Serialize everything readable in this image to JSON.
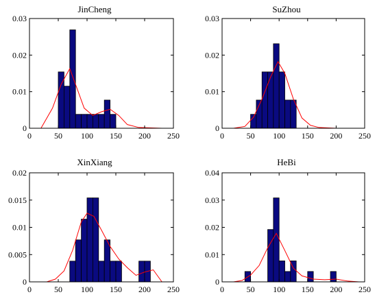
{
  "figure": {
    "bar_color": "#0a0a80",
    "curve_color": "#ff0000",
    "axes_color": "#000000"
  },
  "chart_data": [
    {
      "type": "bar",
      "title": "JinCheng",
      "xlim": [
        0,
        250
      ],
      "ylim": [
        0,
        0.03
      ],
      "xticks": [
        "0",
        "50",
        "100",
        "150",
        "200",
        "250"
      ],
      "yticks": [
        "0",
        "0.01",
        "0.02",
        "0.03"
      ],
      "bin_width": 10,
      "bars": [
        {
          "x": 55,
          "value": 0.0154
        },
        {
          "x": 65,
          "value": 0.0115
        },
        {
          "x": 75,
          "value": 0.0269
        },
        {
          "x": 85,
          "value": 0.0038
        },
        {
          "x": 95,
          "value": 0.0038
        },
        {
          "x": 105,
          "value": 0.0038
        },
        {
          "x": 115,
          "value": 0.0038
        },
        {
          "x": 125,
          "value": 0.0038
        },
        {
          "x": 135,
          "value": 0.0077
        },
        {
          "x": 145,
          "value": 0.0038
        }
      ],
      "curve": {
        "x": [
          0,
          20,
          40,
          55,
          70,
          80,
          95,
          110,
          125,
          140,
          155,
          170,
          190,
          230
        ],
        "y": [
          0,
          0,
          0.0055,
          0.012,
          0.0163,
          0.012,
          0.0055,
          0.0035,
          0.0045,
          0.0052,
          0.0035,
          0.001,
          0.0002,
          0
        ]
      }
    },
    {
      "type": "bar",
      "title": "SuZhou",
      "xlim": [
        0,
        250
      ],
      "ylim": [
        0,
        0.03
      ],
      "xticks": [
        "0",
        "50",
        "100",
        "150",
        "200",
        "250"
      ],
      "yticks": [
        "0",
        "0.01",
        "0.02",
        "0.03"
      ],
      "bin_width": 10,
      "bars": [
        {
          "x": 55,
          "value": 0.0038
        },
        {
          "x": 65,
          "value": 0.0077
        },
        {
          "x": 75,
          "value": 0.0154
        },
        {
          "x": 85,
          "value": 0.0154
        },
        {
          "x": 95,
          "value": 0.0231
        },
        {
          "x": 105,
          "value": 0.0154
        },
        {
          "x": 115,
          "value": 0.0077
        },
        {
          "x": 125,
          "value": 0.0077
        }
      ],
      "curve": {
        "x": [
          0,
          20,
          40,
          55,
          70,
          85,
          98,
          110,
          125,
          140,
          155,
          170,
          200
        ],
        "y": [
          0,
          0,
          0.0005,
          0.003,
          0.008,
          0.014,
          0.0182,
          0.015,
          0.008,
          0.0028,
          0.0008,
          0.0002,
          0
        ]
      }
    },
    {
      "type": "bar",
      "title": "XinXiang",
      "xlim": [
        0,
        250
      ],
      "ylim": [
        0,
        0.02
      ],
      "xticks": [
        "0",
        "50",
        "100",
        "150",
        "200",
        "250"
      ],
      "yticks": [
        "0",
        "0.005",
        "0.01",
        "0.015",
        "0.02"
      ],
      "bin_width": 10,
      "bars": [
        {
          "x": 75,
          "value": 0.0038
        },
        {
          "x": 85,
          "value": 0.0077
        },
        {
          "x": 95,
          "value": 0.0115
        },
        {
          "x": 105,
          "value": 0.0154
        },
        {
          "x": 115,
          "value": 0.0154
        },
        {
          "x": 125,
          "value": 0.0038
        },
        {
          "x": 135,
          "value": 0.0077
        },
        {
          "x": 145,
          "value": 0.0038
        },
        {
          "x": 155,
          "value": 0.0038
        },
        {
          "x": 195,
          "value": 0.0038
        },
        {
          "x": 205,
          "value": 0.0038
        }
      ],
      "curve": {
        "x": [
          0,
          30,
          45,
          60,
          75,
          90,
          100,
          112,
          125,
          140,
          155,
          170,
          185,
          200,
          215,
          230
        ],
        "y": [
          0,
          0,
          0.0005,
          0.002,
          0.0058,
          0.011,
          0.0126,
          0.012,
          0.0095,
          0.0065,
          0.0042,
          0.0026,
          0.0012,
          0.0018,
          0.0022,
          0
        ]
      }
    },
    {
      "type": "bar",
      "title": "HeBi",
      "xlim": [
        0,
        250
      ],
      "ylim": [
        0,
        0.04
      ],
      "xticks": [
        "0",
        "50",
        "100",
        "150",
        "200",
        "250"
      ],
      "yticks": [
        "0",
        "0.01",
        "0.02",
        "0.03",
        "0.04"
      ],
      "bin_width": 10,
      "bars": [
        {
          "x": 45,
          "value": 0.0038
        },
        {
          "x": 85,
          "value": 0.0192
        },
        {
          "x": 95,
          "value": 0.0308
        },
        {
          "x": 105,
          "value": 0.0077
        },
        {
          "x": 115,
          "value": 0.0038
        },
        {
          "x": 125,
          "value": 0.0077
        },
        {
          "x": 155,
          "value": 0.0038
        },
        {
          "x": 195,
          "value": 0.0038
        }
      ],
      "curve": {
        "x": [
          0,
          20,
          35,
          50,
          65,
          80,
          95,
          110,
          125,
          140,
          160,
          180,
          200,
          220,
          240
        ],
        "y": [
          0,
          0,
          0.0005,
          0.0025,
          0.006,
          0.0125,
          0.0178,
          0.0115,
          0.005,
          0.0022,
          0.001,
          0.0008,
          0.001,
          0.0003,
          0
        ]
      }
    }
  ]
}
